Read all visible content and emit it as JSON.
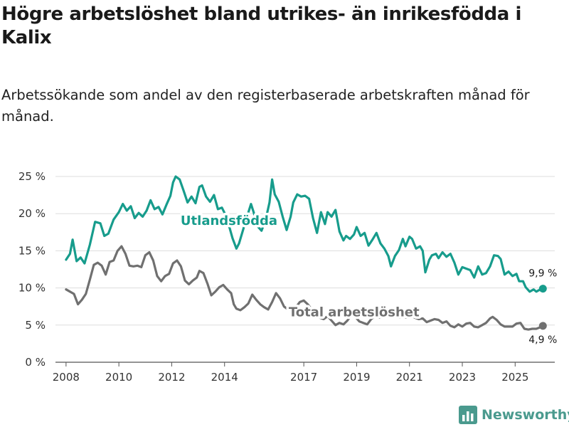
{
  "header": {
    "title": "Högre arbetslöshet bland utrikes- än inrikesfödda i Kalix",
    "subtitle": "Arbetssökande som andel av den registerbaserade arbetskraften månad för månad."
  },
  "colors": {
    "accent": "#179c8c",
    "secondary": "#707070",
    "grid": "#dddddd",
    "brand": "#4a9a8e"
  },
  "brand": {
    "name": "Newsworthy",
    "icon": "bar-chart-logo-icon"
  },
  "chart_data": {
    "type": "line",
    "ylim": [
      0,
      25
    ],
    "xlim": [
      2007.6,
      2026.5
    ],
    "yticks": [
      0,
      5,
      10,
      15,
      20,
      25
    ],
    "ytick_labels": [
      "0 %",
      "5 %",
      "10 %",
      "15 %",
      "20 %",
      "25 %"
    ],
    "xticks": [
      2008,
      2010,
      2012,
      2014,
      2017,
      2019,
      2021,
      2023,
      2025
    ],
    "xtick_labels": [
      "2008",
      "2010",
      "2012",
      "2014",
      "2017",
      "2019",
      "2021",
      "2023",
      "2025"
    ],
    "series": [
      {
        "name": "Utlandsfödda",
        "label": "Utlandsfödda",
        "color": "#179c8c",
        "end_label": "9,9 %",
        "points": [
          [
            2008.0,
            13.8
          ],
          [
            2008.15,
            14.6
          ],
          [
            2008.25,
            16.5
          ],
          [
            2008.4,
            13.6
          ],
          [
            2008.55,
            14.1
          ],
          [
            2008.7,
            13.3
          ],
          [
            2008.9,
            15.8
          ],
          [
            2009.1,
            18.9
          ],
          [
            2009.3,
            18.7
          ],
          [
            2009.45,
            17.0
          ],
          [
            2009.6,
            17.3
          ],
          [
            2009.8,
            19.2
          ],
          [
            2010.0,
            20.2
          ],
          [
            2010.15,
            21.3
          ],
          [
            2010.3,
            20.4
          ],
          [
            2010.45,
            21.0
          ],
          [
            2010.6,
            19.4
          ],
          [
            2010.75,
            20.1
          ],
          [
            2010.9,
            19.6
          ],
          [
            2011.05,
            20.4
          ],
          [
            2011.2,
            21.8
          ],
          [
            2011.35,
            20.6
          ],
          [
            2011.5,
            20.9
          ],
          [
            2011.65,
            19.9
          ],
          [
            2011.8,
            21.2
          ],
          [
            2011.95,
            22.4
          ],
          [
            2012.05,
            24.2
          ],
          [
            2012.15,
            25.0
          ],
          [
            2012.3,
            24.6
          ],
          [
            2012.45,
            23.1
          ],
          [
            2012.6,
            21.5
          ],
          [
            2012.75,
            22.3
          ],
          [
            2012.9,
            21.4
          ],
          [
            2013.05,
            23.6
          ],
          [
            2013.15,
            23.8
          ],
          [
            2013.3,
            22.3
          ],
          [
            2013.45,
            21.6
          ],
          [
            2013.6,
            22.5
          ],
          [
            2013.75,
            20.6
          ],
          [
            2013.9,
            20.8
          ],
          [
            2014.0,
            20.1
          ],
          [
            2014.15,
            18.6
          ],
          [
            2014.3,
            16.7
          ],
          [
            2014.45,
            15.3
          ],
          [
            2014.55,
            16.0
          ],
          [
            2014.7,
            17.8
          ],
          [
            2014.85,
            19.6
          ],
          [
            2015.0,
            21.3
          ],
          [
            2015.1,
            20.2
          ],
          [
            2015.25,
            18.3
          ],
          [
            2015.4,
            17.7
          ],
          [
            2015.55,
            19.1
          ],
          [
            2015.7,
            21.5
          ],
          [
            2015.8,
            24.6
          ],
          [
            2015.9,
            22.6
          ],
          [
            2016.05,
            21.6
          ],
          [
            2016.2,
            19.6
          ],
          [
            2016.35,
            17.8
          ],
          [
            2016.5,
            19.6
          ],
          [
            2016.6,
            21.5
          ],
          [
            2016.75,
            22.6
          ],
          [
            2016.9,
            22.3
          ],
          [
            2017.05,
            22.4
          ],
          [
            2017.2,
            22.0
          ],
          [
            2017.35,
            19.4
          ],
          [
            2017.5,
            17.4
          ],
          [
            2017.65,
            20.2
          ],
          [
            2017.8,
            18.6
          ],
          [
            2017.9,
            20.2
          ],
          [
            2018.05,
            19.6
          ],
          [
            2018.2,
            20.5
          ],
          [
            2018.35,
            17.6
          ],
          [
            2018.5,
            16.4
          ],
          [
            2018.6,
            17.0
          ],
          [
            2018.75,
            16.6
          ],
          [
            2018.9,
            17.2
          ],
          [
            2019.0,
            18.2
          ],
          [
            2019.15,
            17.0
          ],
          [
            2019.3,
            17.4
          ],
          [
            2019.45,
            15.7
          ],
          [
            2019.6,
            16.5
          ],
          [
            2019.75,
            17.4
          ],
          [
            2019.9,
            16.0
          ],
          [
            2020.05,
            15.3
          ],
          [
            2020.2,
            14.3
          ],
          [
            2020.3,
            12.9
          ],
          [
            2020.45,
            14.3
          ],
          [
            2020.6,
            15.1
          ],
          [
            2020.75,
            16.6
          ],
          [
            2020.85,
            15.6
          ],
          [
            2021.0,
            16.9
          ],
          [
            2021.1,
            16.6
          ],
          [
            2021.25,
            15.3
          ],
          [
            2021.4,
            15.6
          ],
          [
            2021.5,
            15.0
          ],
          [
            2021.6,
            12.1
          ],
          [
            2021.75,
            13.8
          ],
          [
            2021.85,
            14.4
          ],
          [
            2022.0,
            14.6
          ],
          [
            2022.1,
            14.0
          ],
          [
            2022.25,
            14.8
          ],
          [
            2022.4,
            14.2
          ],
          [
            2022.55,
            14.6
          ],
          [
            2022.7,
            13.4
          ],
          [
            2022.85,
            11.8
          ],
          [
            2023.0,
            12.8
          ],
          [
            2023.15,
            12.6
          ],
          [
            2023.3,
            12.4
          ],
          [
            2023.45,
            11.4
          ],
          [
            2023.6,
            12.9
          ],
          [
            2023.75,
            11.8
          ],
          [
            2023.9,
            12.0
          ],
          [
            2024.05,
            12.9
          ],
          [
            2024.2,
            14.4
          ],
          [
            2024.35,
            14.3
          ],
          [
            2024.45,
            13.9
          ],
          [
            2024.6,
            11.8
          ],
          [
            2024.75,
            12.2
          ],
          [
            2024.9,
            11.6
          ],
          [
            2025.05,
            11.9
          ],
          [
            2025.15,
            10.9
          ],
          [
            2025.3,
            10.9
          ],
          [
            2025.4,
            10.1
          ],
          [
            2025.55,
            9.5
          ],
          [
            2025.7,
            9.8
          ],
          [
            2025.8,
            9.5
          ],
          [
            2025.9,
            9.7
          ],
          [
            2026.05,
            9.9
          ]
        ]
      },
      {
        "name": "Total arbetslöshet",
        "label": "Total arbetslöshet",
        "color": "#707070",
        "end_label": "4,9 %",
        "points": [
          [
            2008.0,
            9.8
          ],
          [
            2008.15,
            9.5
          ],
          [
            2008.3,
            9.2
          ],
          [
            2008.45,
            7.8
          ],
          [
            2008.6,
            8.4
          ],
          [
            2008.75,
            9.2
          ],
          [
            2008.9,
            11.1
          ],
          [
            2009.05,
            13.1
          ],
          [
            2009.2,
            13.4
          ],
          [
            2009.35,
            13.0
          ],
          [
            2009.5,
            11.8
          ],
          [
            2009.65,
            13.5
          ],
          [
            2009.8,
            13.7
          ],
          [
            2009.95,
            15.0
          ],
          [
            2010.1,
            15.6
          ],
          [
            2010.25,
            14.6
          ],
          [
            2010.4,
            13.0
          ],
          [
            2010.55,
            12.9
          ],
          [
            2010.7,
            13.0
          ],
          [
            2010.85,
            12.8
          ],
          [
            2011.0,
            14.4
          ],
          [
            2011.15,
            14.8
          ],
          [
            2011.3,
            13.7
          ],
          [
            2011.45,
            11.6
          ],
          [
            2011.6,
            10.9
          ],
          [
            2011.75,
            11.6
          ],
          [
            2011.9,
            11.9
          ],
          [
            2012.05,
            13.3
          ],
          [
            2012.2,
            13.7
          ],
          [
            2012.35,
            12.9
          ],
          [
            2012.5,
            11.0
          ],
          [
            2012.65,
            10.5
          ],
          [
            2012.8,
            11.0
          ],
          [
            2012.95,
            11.4
          ],
          [
            2013.05,
            12.3
          ],
          [
            2013.2,
            12.0
          ],
          [
            2013.35,
            10.6
          ],
          [
            2013.5,
            9.0
          ],
          [
            2013.65,
            9.5
          ],
          [
            2013.8,
            10.1
          ],
          [
            2013.95,
            10.4
          ],
          [
            2014.1,
            9.8
          ],
          [
            2014.25,
            9.3
          ],
          [
            2014.35,
            7.8
          ],
          [
            2014.45,
            7.2
          ],
          [
            2014.6,
            7.0
          ],
          [
            2014.75,
            7.4
          ],
          [
            2014.9,
            7.9
          ],
          [
            2015.05,
            9.1
          ],
          [
            2015.2,
            8.4
          ],
          [
            2015.35,
            7.8
          ],
          [
            2015.5,
            7.4
          ],
          [
            2015.65,
            7.1
          ],
          [
            2015.8,
            8.1
          ],
          [
            2015.95,
            9.3
          ],
          [
            2016.1,
            8.6
          ],
          [
            2016.25,
            7.5
          ],
          [
            2016.4,
            7.1
          ],
          [
            2016.55,
            6.9
          ],
          [
            2016.7,
            7.4
          ],
          [
            2016.85,
            8.1
          ],
          [
            2017.0,
            8.3
          ],
          [
            2017.15,
            7.8
          ],
          [
            2017.3,
            7.1
          ],
          [
            2017.45,
            6.4
          ],
          [
            2017.6,
            6.0
          ],
          [
            2017.75,
            5.8
          ],
          [
            2017.9,
            6.2
          ],
          [
            2018.05,
            5.6
          ],
          [
            2018.2,
            5.0
          ],
          [
            2018.35,
            5.3
          ],
          [
            2018.5,
            5.1
          ],
          [
            2018.65,
            5.6
          ],
          [
            2018.8,
            6.4
          ],
          [
            2018.95,
            6.1
          ],
          [
            2019.1,
            5.5
          ],
          [
            2019.25,
            5.3
          ],
          [
            2019.4,
            5.1
          ],
          [
            2019.55,
            5.8
          ],
          [
            2019.7,
            6.2
          ],
          [
            2019.85,
            6.0
          ],
          [
            2020.0,
            6.3
          ],
          [
            2020.15,
            6.1
          ],
          [
            2020.3,
            6.5
          ],
          [
            2020.45,
            6.2
          ],
          [
            2020.6,
            6.0
          ],
          [
            2020.75,
            6.1
          ],
          [
            2020.9,
            6.0
          ],
          [
            2021.05,
            6.3
          ],
          [
            2021.2,
            6.0
          ],
          [
            2021.35,
            5.8
          ],
          [
            2021.5,
            5.9
          ],
          [
            2021.65,
            5.4
          ],
          [
            2021.8,
            5.6
          ],
          [
            2021.95,
            5.8
          ],
          [
            2022.1,
            5.7
          ],
          [
            2022.25,
            5.3
          ],
          [
            2022.4,
            5.5
          ],
          [
            2022.55,
            4.9
          ],
          [
            2022.7,
            4.7
          ],
          [
            2022.85,
            5.1
          ],
          [
            2023.0,
            4.8
          ],
          [
            2023.15,
            5.2
          ],
          [
            2023.3,
            5.3
          ],
          [
            2023.45,
            4.8
          ],
          [
            2023.6,
            4.7
          ],
          [
            2023.75,
            5.0
          ],
          [
            2023.9,
            5.3
          ],
          [
            2024.05,
            5.9
          ],
          [
            2024.15,
            6.1
          ],
          [
            2024.3,
            5.7
          ],
          [
            2024.45,
            5.1
          ],
          [
            2024.6,
            4.8
          ],
          [
            2024.75,
            4.8
          ],
          [
            2024.9,
            4.8
          ],
          [
            2025.05,
            5.2
          ],
          [
            2025.2,
            5.3
          ],
          [
            2025.35,
            4.5
          ],
          [
            2025.5,
            4.4
          ],
          [
            2025.65,
            4.5
          ],
          [
            2025.8,
            4.5
          ],
          [
            2025.95,
            4.7
          ],
          [
            2026.05,
            4.9
          ]
        ]
      }
    ]
  }
}
